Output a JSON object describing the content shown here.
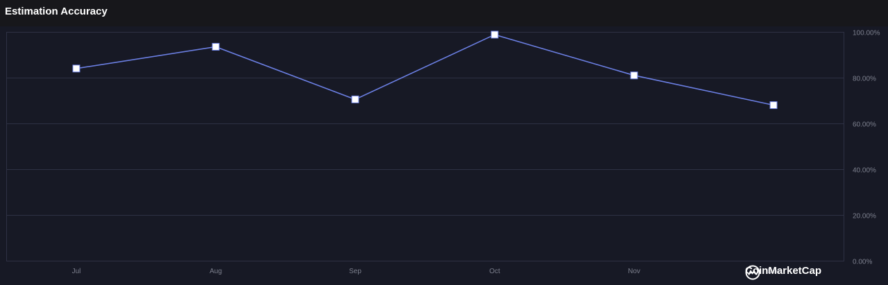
{
  "header": {
    "title": "Estimation Accuracy"
  },
  "watermark": {
    "label": "CoinMarketCap",
    "icon": "coinmarketcap-logo"
  },
  "colors": {
    "background": "#171925",
    "line": "#6b7fe3",
    "grid": "#2e3144",
    "tick_text": "#7d808e",
    "marker_fill": "#ffffff"
  },
  "chart_data": {
    "type": "line",
    "title": "Estimation Accuracy",
    "xlabel": "",
    "ylabel": "",
    "categories": [
      "Jul",
      "Aug",
      "Sep",
      "Oct",
      "Nov",
      "Dec"
    ],
    "series": [
      {
        "values": [
          84.0,
          93.5,
          70.5,
          98.8,
          81.0,
          68.0
        ]
      }
    ],
    "y_ticks": [
      "0.00%",
      "20.00%",
      "40.00%",
      "60.00%",
      "80.00%",
      "100.00%"
    ],
    "ylim": [
      0,
      100
    ],
    "y_axis_side": "right",
    "grid": true,
    "legend": "none"
  }
}
